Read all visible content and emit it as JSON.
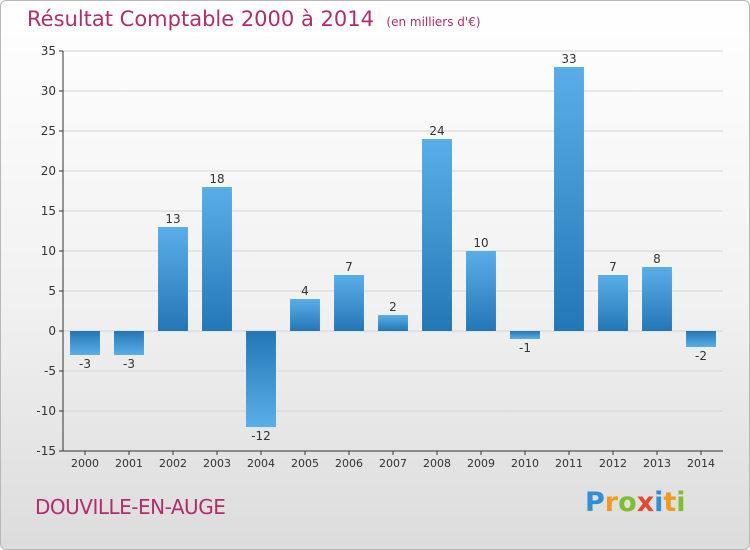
{
  "header": {
    "title": "Résultat Comptable 2000 à 2014",
    "subtitle": "(en milliers d'€)"
  },
  "footer": {
    "commune": "DOUVILLE-EN-AUGE",
    "logo_letters": [
      {
        "ch": "P",
        "color": "#2f8fd8"
      },
      {
        "ch": "r",
        "color": "#f39a1e"
      },
      {
        "ch": "o",
        "color": "#7fbf2a"
      },
      {
        "ch": "x",
        "color": "#e24a2b"
      },
      {
        "ch": "i",
        "color": "#2f8fd8"
      },
      {
        "ch": "t",
        "color": "#f39a1e"
      },
      {
        "ch": "i",
        "color": "#7fbf2a"
      }
    ]
  },
  "colors": {
    "bar_light": "#5aaee8",
    "bar_dark": "#2377b5",
    "title": "#b22d6e",
    "axis": "#333333",
    "grid": "#d4d4d4"
  },
  "chart_data": {
    "type": "bar",
    "categories": [
      "2000",
      "2001",
      "2002",
      "2003",
      "2004",
      "2005",
      "2006",
      "2007",
      "2008",
      "2009",
      "2010",
      "2011",
      "2012",
      "2013",
      "2014"
    ],
    "values": [
      -3,
      -3,
      13,
      18,
      -12,
      4,
      7,
      2,
      24,
      10,
      -1,
      33,
      7,
      8,
      -2
    ],
    "data_labels": [
      "-3",
      "-3",
      "13",
      "18",
      "-12",
      "4",
      "7",
      "2",
      "24",
      "10",
      "-1",
      "33",
      "7",
      "8",
      "-2"
    ],
    "yticks": [
      35,
      30,
      25,
      20,
      15,
      10,
      5,
      0,
      -5,
      -10,
      -15
    ],
    "ylim": [
      -15,
      35
    ],
    "grid": true,
    "legend": "none"
  }
}
